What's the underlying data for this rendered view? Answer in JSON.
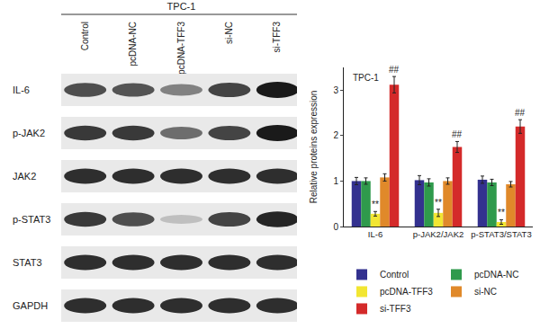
{
  "chart_data": [
    {
      "type": "blot",
      "title": "TPC-1",
      "lanes": [
        "Control",
        "pcDNA-NC",
        "pcDNA-TFF3",
        "si-NC",
        "si-TFF3"
      ],
      "rows": [
        {
          "label": "IL-6",
          "intensity": [
            0.75,
            0.72,
            0.5,
            0.8,
            1.0
          ]
        },
        {
          "label": "p-JAK2",
          "intensity": [
            0.85,
            0.85,
            0.6,
            0.8,
            1.0
          ]
        },
        {
          "label": "JAK2",
          "intensity": [
            0.9,
            0.9,
            0.9,
            0.9,
            0.9
          ]
        },
        {
          "label": "p-STAT3",
          "intensity": [
            0.85,
            0.75,
            0.2,
            0.8,
            0.95
          ]
        },
        {
          "label": "STAT3",
          "intensity": [
            0.9,
            0.9,
            0.9,
            0.9,
            0.9
          ]
        },
        {
          "label": "GAPDH",
          "intensity": [
            0.9,
            0.9,
            0.9,
            0.9,
            0.9
          ]
        }
      ]
    },
    {
      "type": "bar",
      "title": "TPC-1",
      "y_label": "Relative proteins expression",
      "categories": [
        "IL-6",
        "p-JAK2/JAK2",
        "p-STAT3/STAT3"
      ],
      "series": [
        {
          "name": "Control",
          "color": "#33318f",
          "values": [
            1.0,
            1.02,
            1.03
          ],
          "errors": [
            0.08,
            0.1,
            0.08
          ]
        },
        {
          "name": "pcDNA-NC",
          "color": "#2f9a4c",
          "values": [
            1.0,
            0.97,
            0.97
          ],
          "errors": [
            0.07,
            0.08,
            0.07
          ]
        },
        {
          "name": "pcDNA-TFF3",
          "color": "#f2e632",
          "values": [
            0.28,
            0.3,
            0.1
          ],
          "errors": [
            0.05,
            0.08,
            0.05
          ]
        },
        {
          "name": "si-NC",
          "color": "#e0892a",
          "values": [
            1.08,
            1.0,
            0.93
          ],
          "errors": [
            0.08,
            0.07,
            0.06
          ]
        },
        {
          "name": "si-TFF3",
          "color": "#d42a2a",
          "values": [
            3.12,
            1.75,
            2.2
          ],
          "errors": [
            0.18,
            0.12,
            0.15
          ]
        }
      ],
      "annotations": [
        {
          "text": "**",
          "category": "IL-6",
          "series": "pcDNA-TFF3"
        },
        {
          "text": "**",
          "category": "p-JAK2/JAK2",
          "series": "pcDNA-TFF3"
        },
        {
          "text": "**",
          "category": "p-STAT3/STAT3",
          "series": "pcDNA-TFF3"
        },
        {
          "text": "##",
          "category": "IL-6",
          "series": "si-TFF3"
        },
        {
          "text": "##",
          "category": "p-JAK2/JAK2",
          "series": "si-TFF3"
        },
        {
          "text": "##",
          "category": "p-STAT3/STAT3",
          "series": "si-TFF3"
        }
      ],
      "ylim": [
        0,
        3.5
      ],
      "yticks": [
        0,
        1,
        2,
        3
      ],
      "grid": false,
      "legend": "bottom"
    }
  ]
}
